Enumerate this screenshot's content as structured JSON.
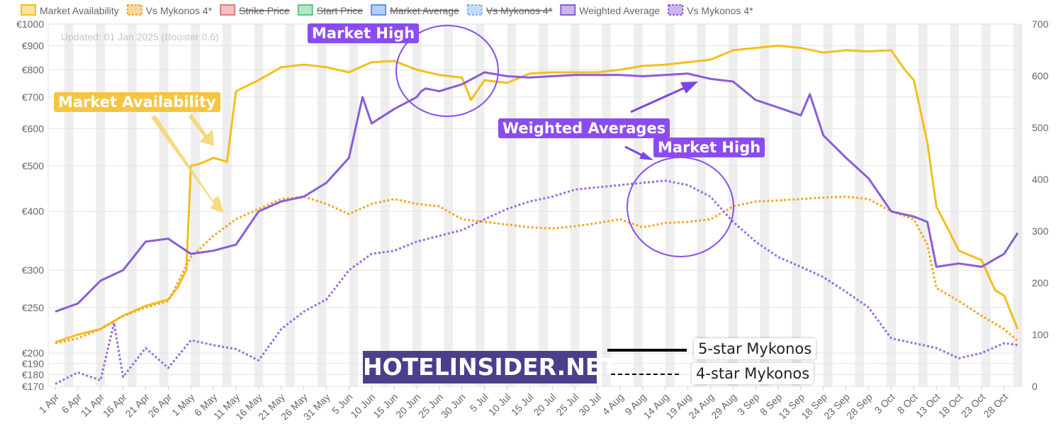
{
  "colors": {
    "market_availability": "#f5be1a",
    "vs_mykonos_availability": "#f5a623",
    "strike_price": "#e07a7a",
    "start_price": "#8ee0a8",
    "market_average": "#6ea8f5",
    "vs_mykonos_avg": "#9ec5f7",
    "weighted_average": "#8a5cd8",
    "vs_mykonos_weighted": "#9b6be0",
    "annotation_purple": "#8a4cf0",
    "annotation_yellow": "#f5c542",
    "brand": "#4b3f8c"
  },
  "legend": [
    {
      "label": "Market Availability",
      "color": "#f5be1a",
      "style": "solid",
      "struck": false
    },
    {
      "label": "Vs Mykonos 4*",
      "color": "#f5a623",
      "style": "dotted",
      "struck": false
    },
    {
      "label": "Strike Price",
      "color": "#e07a7a",
      "style": "solid",
      "struck": true
    },
    {
      "label": "Start Price",
      "color": "#5cc77e",
      "style": "solid",
      "struck": true
    },
    {
      "label": "Market Average",
      "color": "#5b95ea",
      "style": "solid",
      "struck": true
    },
    {
      "label": "Vs Mykonos 4*",
      "color": "#7fb2f2",
      "style": "dotted",
      "struck": true
    },
    {
      "label": "Weighted Average",
      "color": "#8a5cd8",
      "style": "solid",
      "struck": false
    },
    {
      "label": "Vs Mykonos 4*",
      "color": "#8a5cd8",
      "style": "dotted",
      "struck": false
    }
  ],
  "updated_note": "Updated: 01 Jan 2025 (Booster:0.6)",
  "annotations": {
    "market_high_1": "Market High",
    "market_availability": "Market Availability",
    "weighted_averages": "Weighted Averages",
    "market_high_2": "Market High"
  },
  "brand": "HOTELINSIDER.NET",
  "key": {
    "five_star": "5-star Mykonos",
    "four_star": "4-star Mykonos"
  },
  "chart_data": {
    "type": "line",
    "y_left": {
      "scale": "log",
      "range": [
        170,
        1000
      ],
      "ticks": [
        {
          "v": 170,
          "label": "€170"
        },
        {
          "v": 180,
          "label": "€180"
        },
        {
          "v": 190,
          "label": "€190"
        },
        {
          "v": 200,
          "label": "€200"
        },
        {
          "v": 250,
          "label": "€250"
        },
        {
          "v": 300,
          "label": "€300"
        },
        {
          "v": 400,
          "label": "€400"
        },
        {
          "v": 500,
          "label": "€500"
        },
        {
          "v": 600,
          "label": "€600"
        },
        {
          "v": 700,
          "label": "€700"
        },
        {
          "v": 800,
          "label": "€800"
        },
        {
          "v": 900,
          "label": "€900"
        },
        {
          "v": 1000,
          "label": "€1000"
        }
      ]
    },
    "y_right": {
      "scale": "linear",
      "range": [
        0,
        700
      ],
      "ticks": [
        {
          "v": 0,
          "label": "0"
        },
        {
          "v": 100,
          "label": "100"
        },
        {
          "v": 200,
          "label": "200"
        },
        {
          "v": 300,
          "label": "300"
        },
        {
          "v": 400,
          "label": "400"
        },
        {
          "v": 500,
          "label": "500"
        },
        {
          "v": 600,
          "label": "600"
        },
        {
          "v": 700,
          "label": "700"
        }
      ]
    },
    "x_labels": [
      "1 Apr",
      "6 Apr",
      "11 Apr",
      "16 Apr",
      "21 Apr",
      "26 Apr",
      "1 May",
      "6 May",
      "11 May",
      "16 May",
      "21 May",
      "26 May",
      "31 May",
      "5 Jun",
      "10 Jun",
      "15 Jun",
      "20 Jun",
      "25 Jun",
      "30 Jun",
      "5 Jul",
      "10 Jul",
      "15 Jul",
      "20 Jul",
      "25 Jul",
      "30 Jul",
      "4 Aug",
      "9 Aug",
      "14 Aug",
      "19 Aug",
      "24 Aug",
      "29 Aug",
      "3 Sep",
      "8 Sep",
      "13 Sep",
      "18 Sep",
      "23 Sep",
      "28 Sep",
      "3 Oct",
      "8 Oct",
      "13 Oct",
      "18 Oct",
      "23 Oct",
      "28 Oct"
    ],
    "grid": true,
    "series": [
      {
        "name": "Market Availability",
        "axis": "left",
        "style": "solid",
        "color": "#f5be1a",
        "points": [
          [
            "1 Apr",
            211
          ],
          [
            "6 Apr",
            219
          ],
          [
            "11 Apr",
            225
          ],
          [
            "16 Apr",
            240
          ],
          [
            "21 Apr",
            252
          ],
          [
            "26 Apr",
            260
          ],
          [
            "28 Apr",
            275
          ],
          [
            "30 Apr",
            300
          ],
          [
            "1 May",
            500
          ],
          [
            "3 May",
            505
          ],
          [
            "6 May",
            520
          ],
          [
            "9 May",
            510
          ],
          [
            "11 May",
            720
          ],
          [
            "16 May",
            760
          ],
          [
            "21 May",
            810
          ],
          [
            "26 May",
            820
          ],
          [
            "31 May",
            810
          ],
          [
            "5 Jun",
            790
          ],
          [
            "10 Jun",
            830
          ],
          [
            "15 Jun",
            835
          ],
          [
            "20 Jun",
            800
          ],
          [
            "25 Jun",
            780
          ],
          [
            "30 Jun",
            770
          ],
          [
            "2 Jul",
            690
          ],
          [
            "5 Jul",
            760
          ],
          [
            "10 Jul",
            750
          ],
          [
            "15 Jul",
            785
          ],
          [
            "20 Jul",
            790
          ],
          [
            "25 Jul",
            790
          ],
          [
            "30 Jul",
            790
          ],
          [
            "4 Aug",
            800
          ],
          [
            "9 Aug",
            815
          ],
          [
            "14 Aug",
            820
          ],
          [
            "19 Aug",
            830
          ],
          [
            "24 Aug",
            840
          ],
          [
            "29 Aug",
            880
          ],
          [
            "3 Sep",
            890
          ],
          [
            "8 Sep",
            900
          ],
          [
            "13 Sep",
            890
          ],
          [
            "18 Sep",
            870
          ],
          [
            "23 Sep",
            880
          ],
          [
            "28 Sep",
            875
          ],
          [
            "3 Oct",
            880
          ],
          [
            "6 Oct",
            800
          ],
          [
            "8 Oct",
            760
          ],
          [
            "11 Oct",
            560
          ],
          [
            "13 Oct",
            410
          ],
          [
            "16 Oct",
            360
          ],
          [
            "18 Oct",
            330
          ],
          [
            "23 Oct",
            315
          ],
          [
            "26 Oct",
            272
          ],
          [
            "28 Oct",
            265
          ],
          [
            "31 Oct",
            225
          ]
        ]
      },
      {
        "name": "Vs Mykonos 4*",
        "axis": "left",
        "style": "dotted",
        "color": "#f5a623",
        "points": [
          [
            "1 Apr",
            210
          ],
          [
            "6 Apr",
            215
          ],
          [
            "11 Apr",
            225
          ],
          [
            "16 Apr",
            240
          ],
          [
            "21 Apr",
            250
          ],
          [
            "26 Apr",
            258
          ],
          [
            "1 May",
            320
          ],
          [
            "6 May",
            355
          ],
          [
            "11 May",
            385
          ],
          [
            "16 May",
            405
          ],
          [
            "21 May",
            425
          ],
          [
            "26 May",
            430
          ],
          [
            "31 May",
            415
          ],
          [
            "5 Jun",
            395
          ],
          [
            "10 Jun",
            415
          ],
          [
            "15 Jun",
            425
          ],
          [
            "20 Jun",
            415
          ],
          [
            "25 Jun",
            410
          ],
          [
            "30 Jun",
            385
          ],
          [
            "5 Jul",
            380
          ],
          [
            "10 Jul",
            375
          ],
          [
            "15 Jul",
            370
          ],
          [
            "20 Jul",
            368
          ],
          [
            "25 Jul",
            372
          ],
          [
            "30 Jul",
            378
          ],
          [
            "4 Aug",
            385
          ],
          [
            "9 Aug",
            370
          ],
          [
            "14 Aug",
            378
          ],
          [
            "19 Aug",
            380
          ],
          [
            "24 Aug",
            385
          ],
          [
            "29 Aug",
            410
          ],
          [
            "3 Sep",
            420
          ],
          [
            "8 Sep",
            422
          ],
          [
            "13 Sep",
            425
          ],
          [
            "18 Sep",
            428
          ],
          [
            "23 Sep",
            430
          ],
          [
            "28 Sep",
            425
          ],
          [
            "3 Oct",
            400
          ],
          [
            "8 Oct",
            385
          ],
          [
            "11 Oct",
            340
          ],
          [
            "13 Oct",
            275
          ],
          [
            "18 Oct",
            258
          ],
          [
            "23 Oct",
            240
          ],
          [
            "28 Oct",
            225
          ],
          [
            "31 Oct",
            212
          ]
        ]
      },
      {
        "name": "Weighted Average",
        "axis": "left",
        "style": "solid",
        "color": "#8a5cd8",
        "points": [
          [
            "1 Apr",
            245
          ],
          [
            "6 Apr",
            255
          ],
          [
            "11 Apr",
            285
          ],
          [
            "16 Apr",
            300
          ],
          [
            "21 Apr",
            345
          ],
          [
            "26 Apr",
            350
          ],
          [
            "1 May",
            325
          ],
          [
            "6 May",
            330
          ],
          [
            "11 May",
            340
          ],
          [
            "16 May",
            400
          ],
          [
            "21 May",
            420
          ],
          [
            "26 May",
            430
          ],
          [
            "31 May",
            460
          ],
          [
            "5 Jun",
            520
          ],
          [
            "8 Jun",
            700
          ],
          [
            "10 Jun",
            615
          ],
          [
            "15 Jun",
            660
          ],
          [
            "20 Jun",
            700
          ],
          [
            "21 Jun",
            720
          ],
          [
            "22 Jun",
            730
          ],
          [
            "25 Jun",
            720
          ],
          [
            "30 Jun",
            745
          ],
          [
            "5 Jul",
            790
          ],
          [
            "10 Jul",
            775
          ],
          [
            "15 Jul",
            770
          ],
          [
            "20 Jul",
            775
          ],
          [
            "25 Jul",
            780
          ],
          [
            "30 Jul",
            780
          ],
          [
            "4 Aug",
            780
          ],
          [
            "9 Aug",
            775
          ],
          [
            "14 Aug",
            780
          ],
          [
            "19 Aug",
            785
          ],
          [
            "24 Aug",
            765
          ],
          [
            "29 Aug",
            755
          ],
          [
            "3 Sep",
            690
          ],
          [
            "8 Sep",
            665
          ],
          [
            "13 Sep",
            640
          ],
          [
            "15 Sep",
            710
          ],
          [
            "18 Sep",
            580
          ],
          [
            "23 Sep",
            520
          ],
          [
            "28 Sep",
            470
          ],
          [
            "3 Oct",
            400
          ],
          [
            "8 Oct",
            390
          ],
          [
            "11 Oct",
            380
          ],
          [
            "13 Oct",
            305
          ],
          [
            "18 Oct",
            310
          ],
          [
            "23 Oct",
            305
          ],
          [
            "28 Oct",
            325
          ],
          [
            "31 Oct",
            360
          ]
        ]
      },
      {
        "name": "Vs Mykonos 4*",
        "axis": "left",
        "style": "dotted",
        "color": "#9b6be0",
        "points": [
          [
            "1 Apr",
            172
          ],
          [
            "6 Apr",
            182
          ],
          [
            "11 Apr",
            175
          ],
          [
            "14 Apr",
            232
          ],
          [
            "16 Apr",
            178
          ],
          [
            "21 Apr",
            205
          ],
          [
            "26 Apr",
            186
          ],
          [
            "1 May",
            213
          ],
          [
            "6 May",
            208
          ],
          [
            "11 May",
            204
          ],
          [
            "16 May",
            193
          ],
          [
            "21 May",
            225
          ],
          [
            "26 May",
            245
          ],
          [
            "31 May",
            260
          ],
          [
            "5 Jun",
            300
          ],
          [
            "10 Jun",
            325
          ],
          [
            "15 Jun",
            330
          ],
          [
            "20 Jun",
            345
          ],
          [
            "25 Jun",
            355
          ],
          [
            "30 Jun",
            365
          ],
          [
            "5 Jul",
            385
          ],
          [
            "10 Jul",
            405
          ],
          [
            "15 Jul",
            420
          ],
          [
            "20 Jul",
            430
          ],
          [
            "25 Jul",
            445
          ],
          [
            "30 Jul",
            450
          ],
          [
            "4 Aug",
            455
          ],
          [
            "9 Aug",
            460
          ],
          [
            "14 Aug",
            465
          ],
          [
            "19 Aug",
            455
          ],
          [
            "24 Aug",
            430
          ],
          [
            "29 Aug",
            380
          ],
          [
            "3 Sep",
            345
          ],
          [
            "8 Sep",
            320
          ],
          [
            "13 Sep",
            305
          ],
          [
            "18 Sep",
            290
          ],
          [
            "23 Sep",
            270
          ],
          [
            "28 Sep",
            250
          ],
          [
            "3 Oct",
            215
          ],
          [
            "8 Oct",
            210
          ],
          [
            "13 Oct",
            205
          ],
          [
            "18 Oct",
            195
          ],
          [
            "23 Oct",
            200
          ],
          [
            "28 Oct",
            210
          ],
          [
            "31 Oct",
            208
          ]
        ]
      }
    ]
  }
}
